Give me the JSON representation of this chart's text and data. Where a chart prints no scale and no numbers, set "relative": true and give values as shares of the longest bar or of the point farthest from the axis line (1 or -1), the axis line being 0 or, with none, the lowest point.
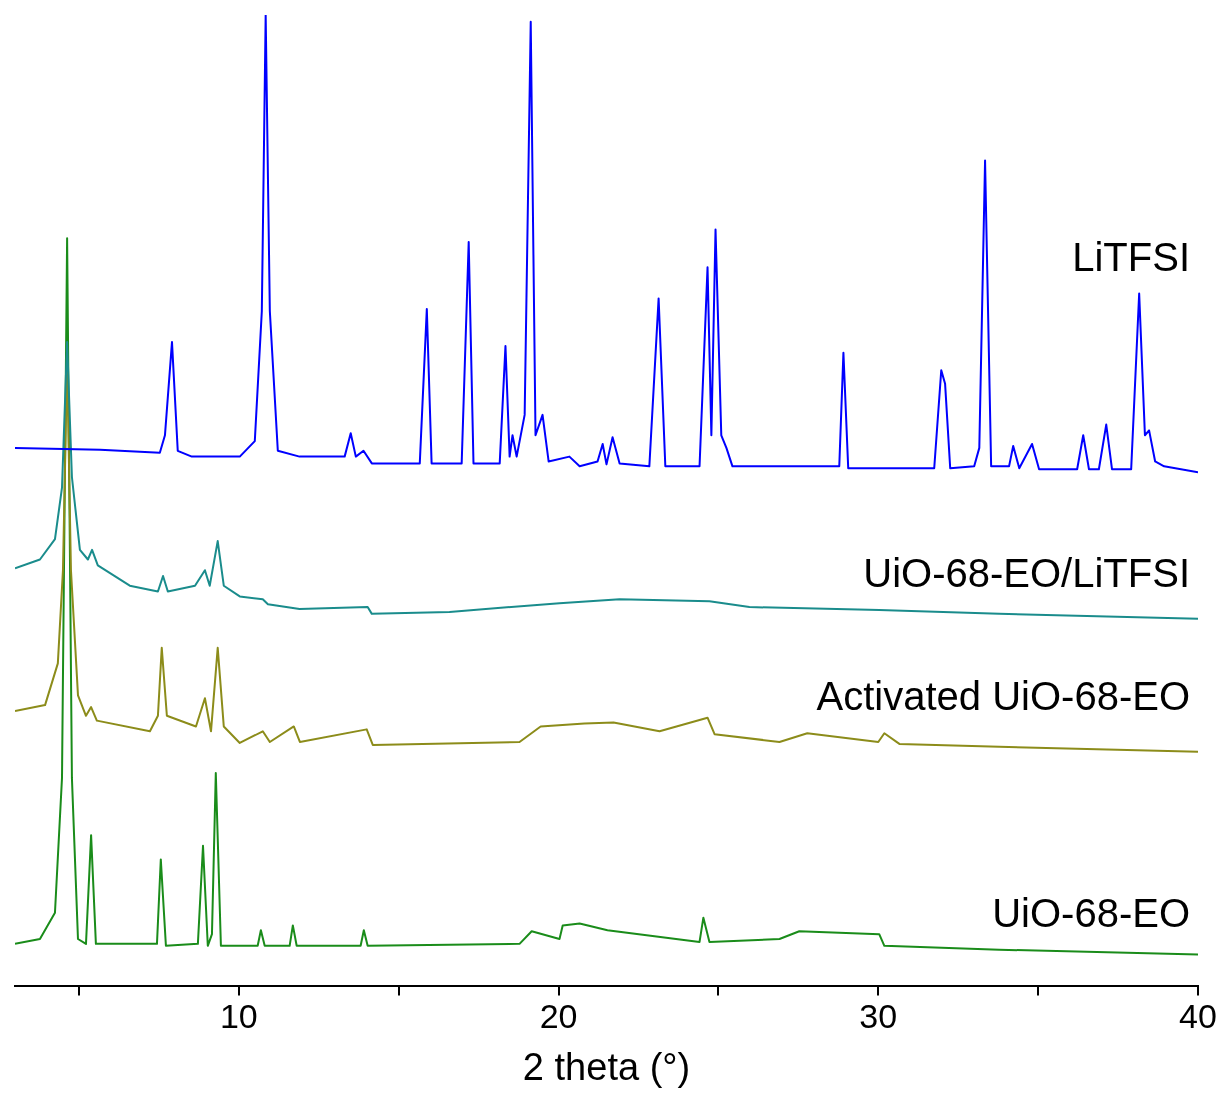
{
  "chart_data": {
    "type": "line",
    "relative": true,
    "xlabel": "2 theta (°)",
    "xlim": [
      3,
      40
    ],
    "xticks": [
      {
        "value": 5,
        "label": null
      },
      10,
      {
        "value": 15,
        "label": null
      },
      20,
      {
        "value": 25,
        "label": null
      },
      30,
      {
        "value": 35,
        "label": null
      },
      40
    ],
    "series": [
      {
        "name": "LiTFSI",
        "color": "#0000ff",
        "x": [
          3.0,
          5.66,
          7.53,
          7.69,
          7.91,
          8.09,
          8.53,
          10.03,
          10.5,
          10.72,
          10.84,
          10.97,
          11.22,
          11.9,
          13.31,
          13.5,
          13.66,
          13.9,
          14.16,
          15.66,
          15.88,
          16.03,
          16.97,
          17.19,
          17.34,
          18.16,
          18.34,
          18.47,
          18.56,
          18.69,
          18.94,
          19.13,
          19.28,
          19.5,
          19.69,
          20.34,
          20.66,
          21.22,
          21.38,
          21.5,
          21.69,
          21.91,
          22.84,
          23.13,
          23.34,
          24.41,
          24.66,
          24.78,
          24.91,
          25.09,
          25.25,
          25.44,
          28.78,
          28.91,
          29.06,
          31.75,
          31.97,
          32.09,
          32.25,
          33.0,
          33.16,
          33.34,
          33.53,
          34.09,
          34.22,
          34.41,
          34.81,
          35.03,
          36.22,
          36.41,
          36.59,
          36.9,
          37.13,
          37.31,
          37.91,
          38.16,
          38.34,
          38.47,
          38.66,
          38.94,
          40.0
        ],
        "values": [
          0.554,
          0.552,
          0.549,
          0.567,
          0.663,
          0.551,
          0.545,
          0.545,
          0.561,
          0.695,
          1.0,
          0.695,
          0.551,
          0.545,
          0.545,
          0.569,
          0.545,
          0.551,
          0.538,
          0.538,
          0.697,
          0.538,
          0.538,
          0.766,
          0.538,
          0.538,
          0.659,
          0.545,
          0.567,
          0.545,
          0.588,
          0.993,
          0.567,
          0.588,
          0.54,
          0.545,
          0.535,
          0.54,
          0.558,
          0.537,
          0.565,
          0.538,
          0.535,
          0.708,
          0.535,
          0.535,
          0.74,
          0.567,
          0.779,
          0.567,
          0.554,
          0.535,
          0.535,
          0.652,
          0.533,
          0.533,
          0.634,
          0.62,
          0.533,
          0.535,
          0.554,
          0.85,
          0.535,
          0.535,
          0.556,
          0.533,
          0.558,
          0.532,
          0.532,
          0.567,
          0.532,
          0.532,
          0.578,
          0.532,
          0.532,
          0.713,
          0.567,
          0.572,
          0.54,
          0.535,
          0.529
        ]
      },
      {
        "name": "UiO-68-EO/LiTFSI",
        "color": "#1a8c8c",
        "x": [
          3.0,
          3.78,
          4.25,
          4.47,
          4.63,
          4.78,
          5.03,
          5.28,
          5.41,
          5.59,
          6.59,
          7.47,
          7.63,
          7.78,
          8.63,
          8.94,
          9.09,
          9.34,
          9.53,
          10.03,
          10.75,
          10.91,
          11.9,
          14.03,
          14.16,
          16.59,
          20.03,
          21.91,
          24.72,
          25.97,
          30.03,
          33.78,
          40.0
        ],
        "values": [
          0.43,
          0.439,
          0.46,
          0.513,
          0.663,
          0.524,
          0.449,
          0.439,
          0.449,
          0.433,
          0.412,
          0.406,
          0.422,
          0.406,
          0.412,
          0.428,
          0.412,
          0.458,
          0.412,
          0.401,
          0.398,
          0.393,
          0.388,
          0.39,
          0.383,
          0.385,
          0.394,
          0.398,
          0.396,
          0.39,
          0.387,
          0.383,
          0.378
        ]
      },
      {
        "name": "Activated UiO-68-EO",
        "color": "#8c8c1a",
        "x": [
          3.0,
          3.94,
          4.34,
          4.5,
          4.63,
          4.75,
          4.97,
          5.22,
          5.38,
          5.56,
          7.22,
          7.47,
          7.59,
          7.75,
          8.66,
          8.94,
          9.13,
          9.34,
          9.53,
          10.03,
          10.75,
          10.97,
          11.72,
          11.91,
          14.0,
          14.19,
          18.78,
          19.44,
          20.81,
          21.72,
          23.16,
          24.66,
          24.88,
          26.91,
          27.78,
          30.0,
          30.19,
          30.66,
          33.78,
          40.0
        ],
        "values": [
          0.283,
          0.289,
          0.332,
          0.428,
          0.642,
          0.428,
          0.299,
          0.278,
          0.287,
          0.273,
          0.262,
          0.278,
          0.348,
          0.278,
          0.267,
          0.296,
          0.262,
          0.348,
          0.267,
          0.25,
          0.262,
          0.251,
          0.267,
          0.251,
          0.264,
          0.248,
          0.251,
          0.267,
          0.27,
          0.271,
          0.262,
          0.276,
          0.259,
          0.251,
          0.26,
          0.251,
          0.26,
          0.249,
          0.246,
          0.241
        ]
      },
      {
        "name": "UiO-68-EO",
        "color": "#1a8c1a",
        "x": [
          3.0,
          3.78,
          4.25,
          4.47,
          4.63,
          4.78,
          4.97,
          5.22,
          5.38,
          5.53,
          7.44,
          7.56,
          7.72,
          8.72,
          8.88,
          9.03,
          9.16,
          9.28,
          9.44,
          10.59,
          10.69,
          10.81,
          11.59,
          11.69,
          11.81,
          13.81,
          13.91,
          14.03,
          18.78,
          19.16,
          20.03,
          20.13,
          20.66,
          21.53,
          24.41,
          24.53,
          24.72,
          26.91,
          27.53,
          30.03,
          30.19,
          33.78,
          40.0
        ],
        "values": [
          0.043,
          0.048,
          0.075,
          0.214,
          0.77,
          0.214,
          0.048,
          0.043,
          0.155,
          0.043,
          0.043,
          0.13,
          0.041,
          0.043,
          0.144,
          0.041,
          0.053,
          0.219,
          0.041,
          0.041,
          0.057,
          0.041,
          0.041,
          0.062,
          0.041,
          0.041,
          0.057,
          0.041,
          0.043,
          0.056,
          0.048,
          0.062,
          0.064,
          0.057,
          0.045,
          0.07,
          0.045,
          0.048,
          0.056,
          0.053,
          0.041,
          0.037,
          0.032
        ]
      }
    ]
  }
}
